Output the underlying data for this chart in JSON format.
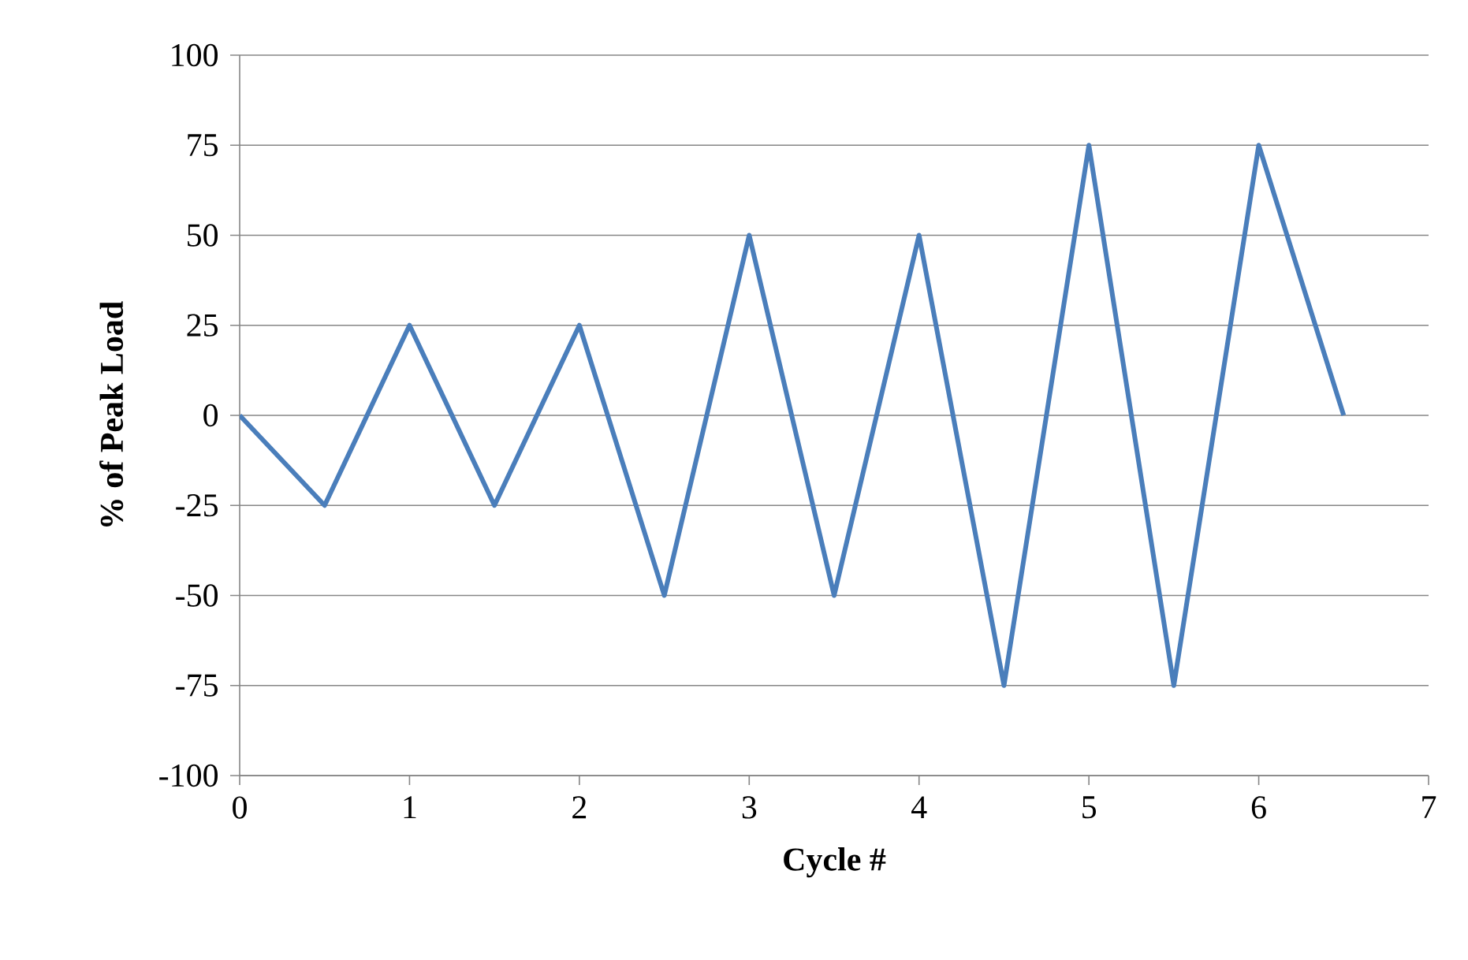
{
  "chart_data": {
    "type": "line",
    "xlabel": "Cycle #",
    "ylabel": "% of Peak Load",
    "x": [
      0,
      0.5,
      1,
      1.5,
      2,
      2.5,
      3,
      3.5,
      4,
      4.5,
      5,
      5.5,
      6,
      6.5
    ],
    "series": [
      {
        "color": "#4a7ebb",
        "values": [
          0,
          -25,
          25,
          -25,
          25,
          -50,
          50,
          -50,
          50,
          -75,
          75,
          -75,
          75,
          0
        ]
      }
    ],
    "xlim": [
      0,
      7
    ],
    "xticks": [
      0,
      1,
      2,
      3,
      4,
      5,
      6,
      7
    ],
    "ylim": [
      -100,
      100
    ],
    "yticks": [
      -100,
      -75,
      -50,
      -25,
      0,
      25,
      50,
      75,
      100
    ],
    "grid": "y"
  }
}
